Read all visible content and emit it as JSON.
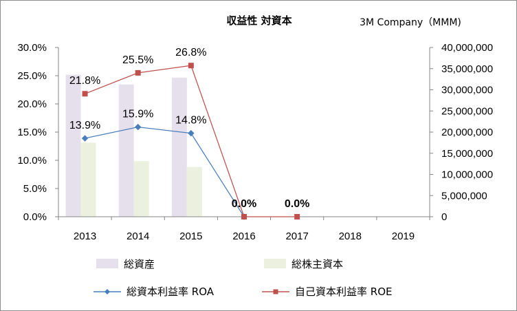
{
  "chart_data": {
    "type": "bar+line",
    "title": "収益性 対資本",
    "subtitle": "3M Company（MMM)",
    "categories": [
      "2013",
      "2014",
      "2015",
      "2016",
      "2017",
      "2018",
      "2019"
    ],
    "y_left": {
      "range": [
        0,
        0.3
      ],
      "ticks": [
        "0.0%",
        "5.0%",
        "10.0%",
        "15.0%",
        "20.0%",
        "25.0%",
        "30.0%"
      ]
    },
    "y_right": {
      "range": [
        0,
        40000000
      ],
      "ticks": [
        "0",
        "5,000,000",
        "10,000,000",
        "15,000,000",
        "20,000,000",
        "25,000,000",
        "30,000,000",
        "35,000,000",
        "40,000,000"
      ]
    },
    "grid": false,
    "legend_position": "bottom",
    "series": [
      {
        "name": "総資産",
        "type": "bar",
        "axis": "right",
        "color": "#e6e0ec",
        "values": [
          33550000,
          31270000,
          32880000,
          null,
          null,
          null,
          null
        ]
      },
      {
        "name": "総株主資本",
        "type": "bar",
        "axis": "right",
        "color": "#ebf1de",
        "values": [
          17500000,
          13140000,
          11750000,
          null,
          null,
          null,
          null
        ]
      },
      {
        "name": "総資本利益率  ROA",
        "type": "line",
        "axis": "left",
        "color": "#4a7ebb",
        "marker": "diamond",
        "values": [
          0.139,
          0.159,
          0.148,
          0.0,
          null,
          null,
          null
        ],
        "labels": [
          "13.9%",
          "15.9%",
          "14.8%",
          "0.0%",
          null,
          null,
          null
        ]
      },
      {
        "name": "自己資本利益率   ROE",
        "type": "line",
        "axis": "left",
        "color": "#c0504d",
        "marker": "square",
        "values": [
          0.218,
          0.255,
          0.268,
          0.0,
          0.0,
          null,
          null
        ],
        "labels": [
          "21.8%",
          "25.5%",
          "26.8%",
          null,
          "0.0%",
          null,
          null
        ]
      }
    ]
  }
}
